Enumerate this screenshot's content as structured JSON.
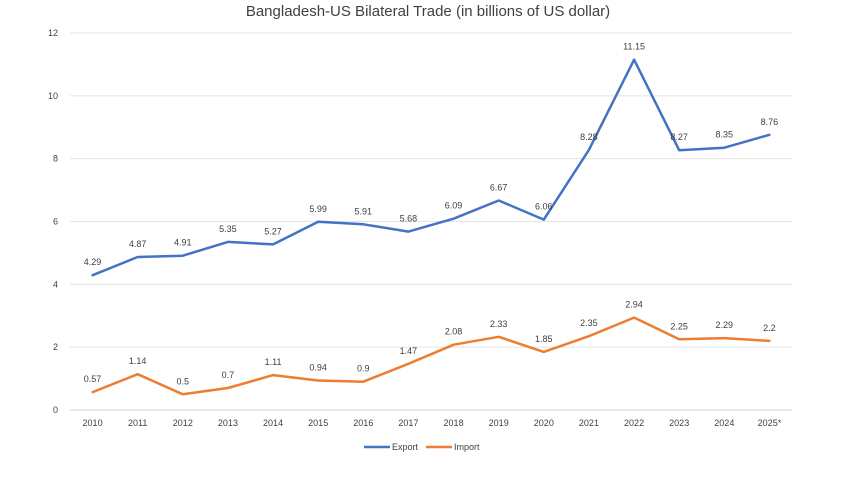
{
  "chart_data": {
    "type": "line",
    "title": "Bangladesh-US Bilateral Trade (in billions of US dollar)",
    "xlabel": "",
    "ylabel": "",
    "categories": [
      "2010",
      "2011",
      "2012",
      "2013",
      "2014",
      "2015",
      "2016",
      "2017",
      "2018",
      "2019",
      "2020",
      "2021",
      "2022",
      "2023",
      "2024",
      "2025*"
    ],
    "ylim": [
      0,
      12
    ],
    "yticks": [
      0,
      2,
      4,
      6,
      8,
      10,
      12
    ],
    "grid": true,
    "legend_position": "bottom",
    "series": [
      {
        "name": "Export",
        "color": "#4472C4",
        "values": [
          4.29,
          4.87,
          4.91,
          5.35,
          5.27,
          5.99,
          5.91,
          5.68,
          6.09,
          6.67,
          6.06,
          8.28,
          11.15,
          8.27,
          8.35,
          8.76
        ]
      },
      {
        "name": "Import",
        "color": "#ED7D31",
        "values": [
          0.57,
          1.14,
          0.5,
          0.7,
          1.11,
          0.94,
          0.9,
          1.47,
          2.08,
          2.33,
          1.85,
          2.35,
          2.94,
          2.25,
          2.29,
          2.2
        ]
      }
    ]
  }
}
